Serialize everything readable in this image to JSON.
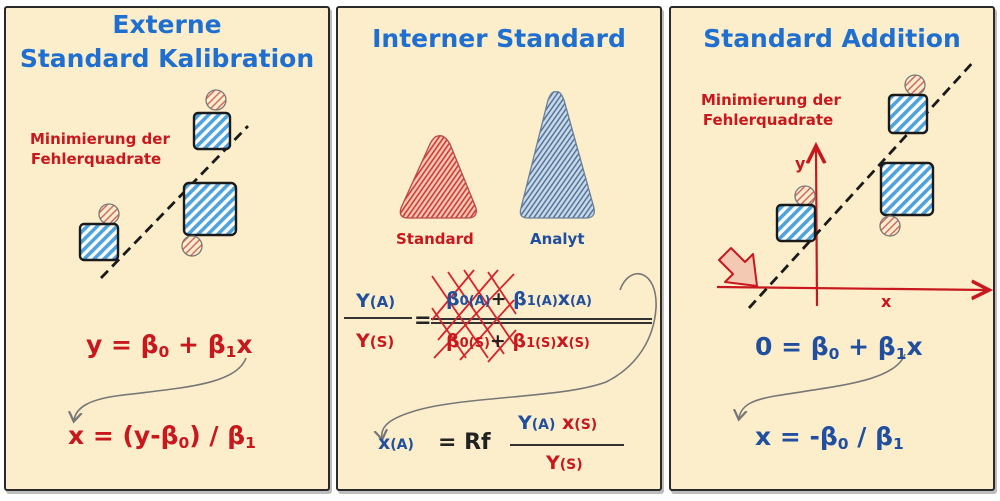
{
  "panels": [
    {
      "title_line1": "Externe",
      "title_line2": "Standard Kalibration",
      "note_line1": "Minimierung der",
      "note_line2": "Fehlerquadrate",
      "eq1": {
        "a": "y = β",
        "s0": "0",
        "b": " + β",
        "s1": "1",
        "c": "x"
      },
      "eq2": {
        "a": "x = (y-β",
        "s0": "0",
        "b": ") / β",
        "s1": "1"
      }
    },
    {
      "title": "Interner Standard",
      "label_standard": "Standard",
      "label_analyt": "Analyt",
      "fraction_left": {
        "num": "Y",
        "num_sub": "(A)",
        "den": "Y",
        "den_sub": "(S)",
        "eq": "="
      },
      "fraction_right": {
        "num_b0": "β",
        "num_b0_sub": "0(A)",
        "plus": "+",
        "num_b1": "β",
        "num_b1_sub": "1(A)",
        "num_x": "x",
        "num_x_sub": "(A)",
        "den_b0": "β",
        "den_b0_sub": "0(S)",
        "den_b1": "β",
        "den_b1_sub": "1(S)",
        "den_x": "x",
        "den_x_sub": "(S)"
      },
      "result": {
        "x": "x",
        "x_sub": "(A)",
        "eq_rf": "= Rf",
        "num_y": "Y",
        "num_y_sub": "(A)",
        "num_x": "x",
        "num_x_sub": "(S)",
        "den_y": "Y",
        "den_y_sub": "(S)"
      }
    },
    {
      "title": "Standard Addition",
      "note_line1": "Minimierung der",
      "note_line2": "Fehlerquadrate",
      "axis_y": "y",
      "axis_x": "x",
      "eq1": {
        "a": "0 = β",
        "s0": "0",
        "b": " + β",
        "s1": "1",
        "c": "x"
      },
      "eq2": {
        "a": "x = -β",
        "s0": "0",
        "b": " / β",
        "s1": "1"
      }
    }
  ],
  "colors": {
    "panel_bg": "#fdeecb",
    "title_blue": "#1e6fd0",
    "red": "#c8181e",
    "dark_blue": "#1f4f9e",
    "hatch_blue": "#4ea3dc",
    "hatch_red": "#d46a6a"
  }
}
